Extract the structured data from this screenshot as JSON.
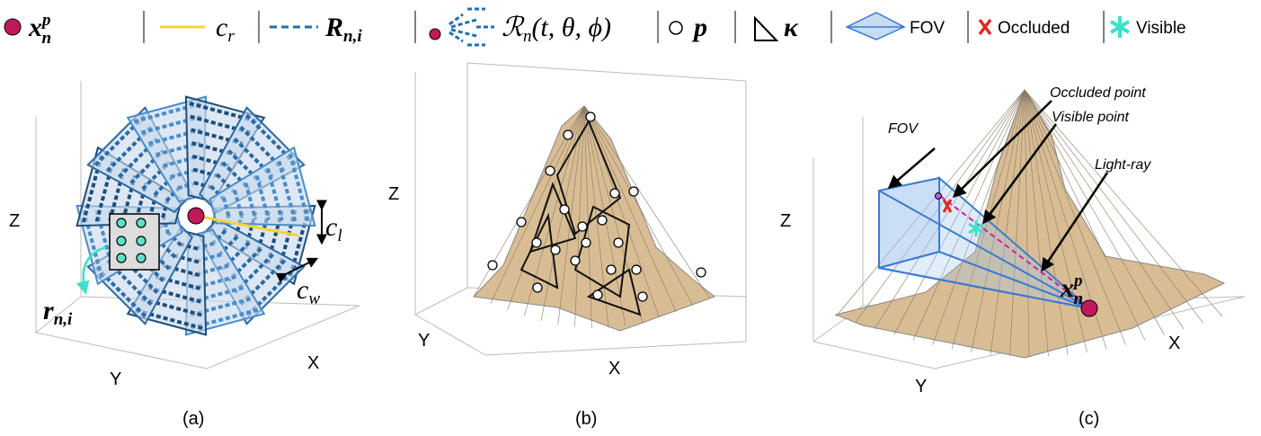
{
  "legend": [
    {
      "symbol": "x",
      "sub": "n",
      "sup": "p"
    },
    {
      "symbol": "c",
      "sub": "r"
    },
    {
      "symbol": "R",
      "sub": "n,i"
    },
    {
      "symbol": "ℛ",
      "sub": "n",
      "args": "(t, θ, ϕ)"
    },
    {
      "symbol": "p"
    },
    {
      "symbol": "κ"
    },
    {
      "text": "FOV"
    },
    {
      "text": "Occluded"
    },
    {
      "text": "Visible"
    }
  ],
  "panels": [
    {
      "label": "(a)",
      "axes": {
        "x": "X",
        "y": "Y",
        "z": "Z"
      },
      "annotations": [
        {
          "symbol": "c",
          "sub": "l"
        },
        {
          "symbol": "c",
          "sub": "w"
        },
        {
          "symbol": "r",
          "sub": "n,i"
        }
      ]
    },
    {
      "label": "(b)",
      "axes": {
        "x": "X",
        "y": "Y",
        "z": "Z"
      }
    },
    {
      "label": "(c)",
      "axes": {
        "x": "X",
        "y": "Y",
        "z": "Z"
      },
      "annotations": [
        {
          "text": "FOV"
        },
        {
          "text": "Occluded point"
        },
        {
          "text": "Visible point"
        },
        {
          "text": "Light-ray"
        },
        {
          "symbol": "x",
          "sub": "n",
          "sup": "p"
        }
      ]
    }
  ]
}
